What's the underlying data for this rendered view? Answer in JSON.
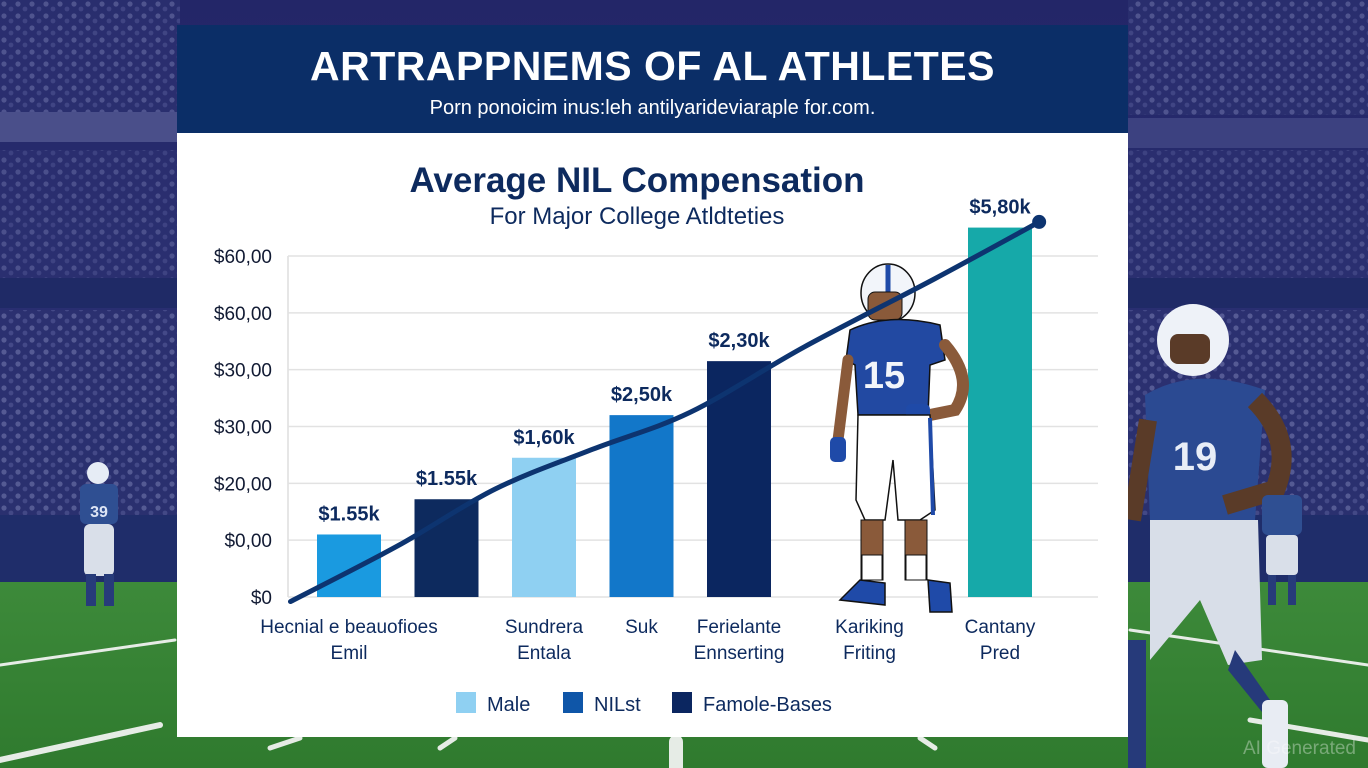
{
  "header": {
    "title": "ARTRAPPNEMS OF AL ATHLETES",
    "subtitle": "Porn ponoicim inus:leh antilyarideviaraple for.com."
  },
  "watermark": "AI Generated",
  "colors": {
    "header_bg": "#0b2e67",
    "text_navy": "#0d2a5e",
    "trend_line": "#0d3470",
    "legend_male": "#8fd0f2",
    "legend_nilst": "#0f56a8",
    "legend_famole": "#0b2660"
  },
  "illustrations": {
    "center_player_jersey": "15",
    "right_player_jersey": "19",
    "left_player_jersey": "39"
  },
  "chart_data": {
    "type": "bar",
    "title": "Average NIL Compensation",
    "subtitle": "For Major College Atldteties",
    "xlabel": "",
    "ylabel": "",
    "y_tick_labels": [
      "$60,00",
      "$60,00",
      "$30,00",
      "$30,00",
      "$20,00",
      "$0,00",
      "$0"
    ],
    "y_tick_positions": [
      6,
      5,
      4,
      3,
      2,
      1,
      0
    ],
    "ylim": [
      0,
      6
    ],
    "grid": true,
    "categories": [
      [
        "Hecnial e beauofioes",
        "Emil"
      ],
      [
        "",
        ""
      ],
      [
        "Sundrera",
        "Entala"
      ],
      [
        "Suk",
        ""
      ],
      [
        "Ferielante",
        "Ennserting"
      ],
      [
        "Kariking",
        "Friting"
      ],
      [
        "Cantany",
        "Pred"
      ]
    ],
    "bars": [
      {
        "slot": 0,
        "value": 1.1,
        "label": "$1.55k",
        "color": "#1a9ae0"
      },
      {
        "slot": 1,
        "value": 1.72,
        "label": "$1.55k",
        "color": "#0d2a5e"
      },
      {
        "slot": 2,
        "value": 2.45,
        "label": "$1,60k",
        "color": "#8fd0f2"
      },
      {
        "slot": 3,
        "value": 3.2,
        "label": "$2,50k",
        "color": "#1277c9"
      },
      {
        "slot": 4,
        "value": 4.15,
        "label": "$2,30k",
        "color": "#0b2660"
      },
      {
        "slot": 6,
        "value": 6.5,
        "label": "$5,80k",
        "color": "#16a9a9"
      }
    ],
    "trend_line": {
      "x": [
        -0.6,
        0.5,
        1.5,
        2.5,
        3.5,
        4.5,
        5.5,
        6.3
      ],
      "y": [
        -0.08,
        0.9,
        1.9,
        2.6,
        3.25,
        4.4,
        5.6,
        6.6
      ]
    },
    "legend": [
      {
        "label": "Male",
        "color": "#8fd0f2"
      },
      {
        "label": "NILst",
        "color": "#0f56a8"
      },
      {
        "label": "Famole-Bases",
        "color": "#0b2660"
      }
    ],
    "legend_position": "bottom"
  }
}
